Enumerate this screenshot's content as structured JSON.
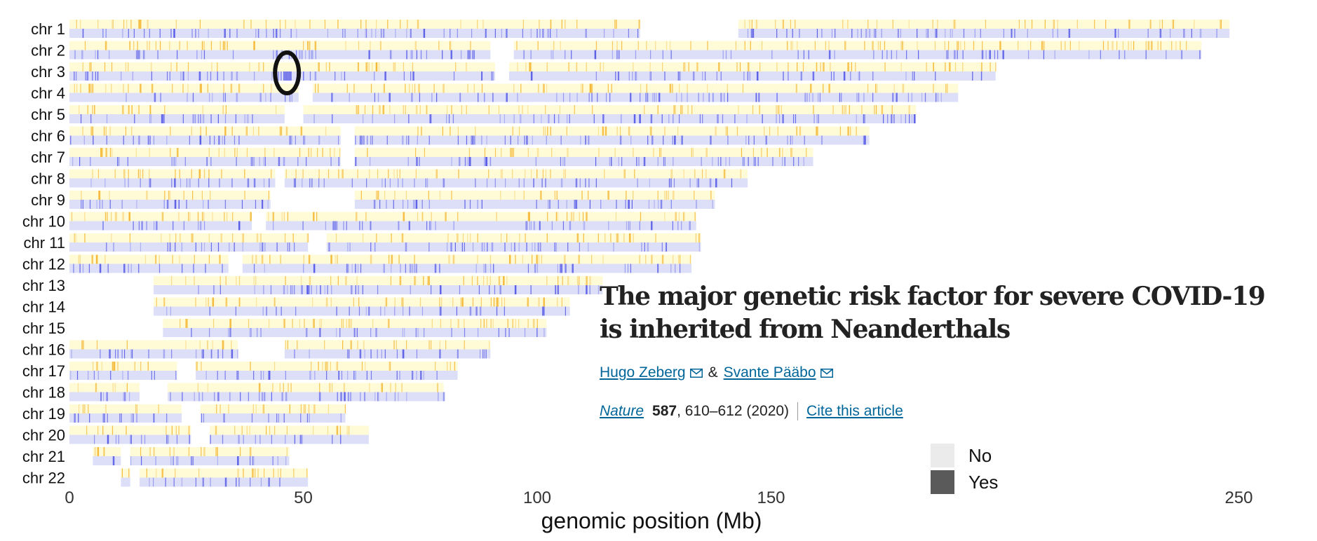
{
  "chart_data": {
    "type": "heatmap",
    "description_note_free": "",
    "xlabel": "genomic position (Mb)",
    "xlim": [
      0,
      250
    ],
    "xticks": [
      0,
      50,
      100,
      150,
      250
    ],
    "xtick_labels": [
      "0",
      "50",
      "100",
      "150",
      "250"
    ],
    "legend": {
      "labels": [
        "No",
        "Yes"
      ],
      "colors": [
        "#ebebeb",
        "#5a5a5a"
      ]
    },
    "track_colors": {
      "top_track": "#fffbd6",
      "top_marks": "#f5b93a",
      "bottom_track": "#dddff9",
      "bottom_marks": "#5a5ee6"
    },
    "highlight": {
      "chromosome": "chr 3",
      "position_mb": 46.5
    },
    "chromosomes": [
      {
        "name": "chr 1",
        "length": 248,
        "gaps": [
          [
            122,
            143
          ]
        ]
      },
      {
        "name": "chr 2",
        "length": 242,
        "gaps": [
          [
            90,
            95
          ]
        ]
      },
      {
        "name": "chr 3",
        "length": 198,
        "gaps": [
          [
            91,
            94
          ]
        ]
      },
      {
        "name": "chr 4",
        "length": 190,
        "gaps": [
          [
            49,
            52
          ]
        ]
      },
      {
        "name": "chr 5",
        "length": 181,
        "gaps": [
          [
            46,
            50
          ]
        ]
      },
      {
        "name": "chr 6",
        "length": 171,
        "gaps": [
          [
            58,
            61
          ]
        ]
      },
      {
        "name": "chr 7",
        "length": 159,
        "gaps": [
          [
            58,
            61
          ]
        ]
      },
      {
        "name": "chr 8",
        "length": 145,
        "gaps": [
          [
            44,
            46
          ]
        ]
      },
      {
        "name": "chr 9",
        "length": 138,
        "gaps": [
          [
            43,
            61
          ]
        ]
      },
      {
        "name": "chr 10",
        "length": 134,
        "gaps": [
          [
            39,
            42
          ]
        ]
      },
      {
        "name": "chr 11",
        "length": 135,
        "gaps": [
          [
            51,
            55
          ]
        ]
      },
      {
        "name": "chr 12",
        "length": 133,
        "gaps": [
          [
            34,
            37
          ]
        ]
      },
      {
        "name": "chr 13",
        "length": 114,
        "start": 18,
        "gaps": []
      },
      {
        "name": "chr 14",
        "length": 107,
        "start": 18,
        "gaps": []
      },
      {
        "name": "chr 15",
        "length": 102,
        "start": 20,
        "gaps": []
      },
      {
        "name": "chr 16",
        "length": 90,
        "gaps": [
          [
            36,
            46
          ]
        ]
      },
      {
        "name": "chr 17",
        "length": 83,
        "gaps": [
          [
            23,
            27
          ]
        ]
      },
      {
        "name": "chr 18",
        "length": 80,
        "gaps": [
          [
            15,
            21
          ]
        ]
      },
      {
        "name": "chr 19",
        "length": 59,
        "gaps": [
          [
            24,
            28
          ]
        ]
      },
      {
        "name": "chr 20",
        "length": 64,
        "gaps": [
          [
            26,
            30
          ]
        ]
      },
      {
        "name": "chr 21",
        "length": 47,
        "start": 5,
        "gaps": [
          [
            11,
            13
          ]
        ]
      },
      {
        "name": "chr 22",
        "length": 51,
        "start": 11,
        "gaps": [
          [
            13,
            15
          ]
        ]
      }
    ]
  },
  "article": {
    "title": "The major genetic risk factor for severe COVID-19 is inherited from Neanderthals",
    "author1": "Hugo Zeberg",
    "amp": "&",
    "author2": "Svante Pääbo",
    "journal": "Nature",
    "volume": "587",
    "pages": ", 610–612 (2020)",
    "cite_link": "Cite this article"
  }
}
